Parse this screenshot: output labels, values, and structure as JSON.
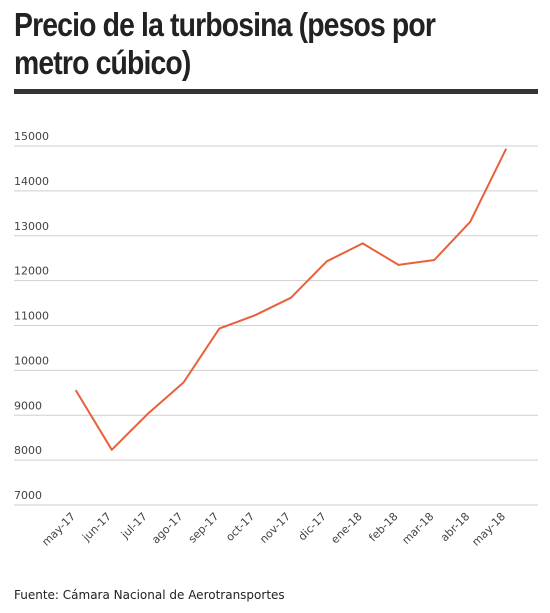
{
  "chart_data": {
    "type": "line",
    "title": "Precio de la turbosina (pesos por metro cúbico)",
    "xlabel": "",
    "ylabel": "",
    "categories": [
      "may-17",
      "jun-17",
      "jul-17",
      "ago-17",
      "sep-17",
      "oct-17",
      "nov-17",
      "dic-17",
      "ene-18",
      "feb-18",
      "mar-18",
      "abr-18",
      "may-18"
    ],
    "series": [
      {
        "values": [
          9550,
          8230,
          9030,
          9730,
          10930,
          11230,
          11620,
          12430,
          12830,
          12350,
          12460,
          13310,
          14930
        ]
      }
    ],
    "yticks": [
      7000,
      8000,
      9000,
      10000,
      11000,
      12000,
      13000,
      14000,
      15000
    ],
    "ylim": [
      7000,
      15000
    ],
    "grid": true,
    "line_color": "#e8603c"
  },
  "source": "Fuente:  Cámara Nacional de Aerotransportes"
}
